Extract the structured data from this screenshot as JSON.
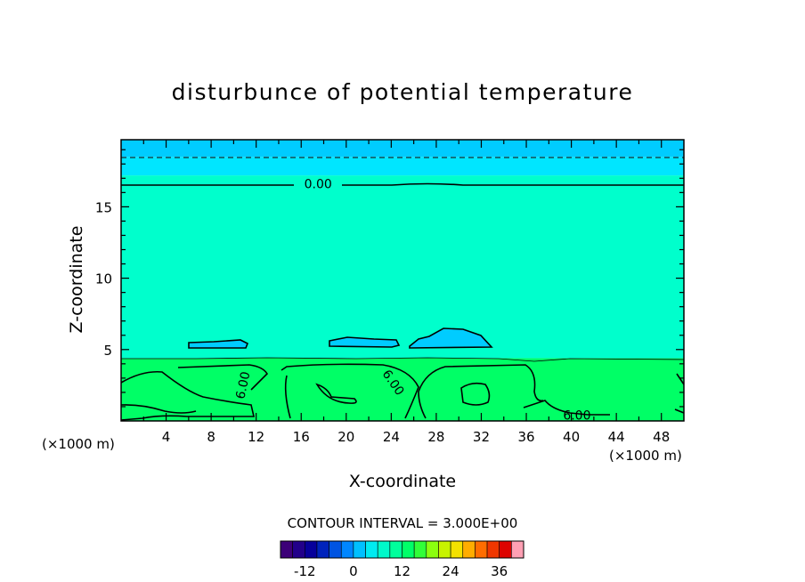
{
  "chart_data": {
    "type": "contour",
    "title": "disturbunce of potential temperature",
    "xlabel": "X-coordinate",
    "ylabel": "Z-coordinate",
    "x_unit_left": "(×1000 m)",
    "x_unit_right": "(×1000 m)",
    "xlim": [
      0,
      50
    ],
    "ylim": [
      0,
      19.7
    ],
    "x_ticks": [
      4,
      8,
      12,
      16,
      20,
      24,
      28,
      32,
      36,
      40,
      44,
      48
    ],
    "y_ticks": [
      5,
      10,
      15
    ],
    "grid": false,
    "contour_interval_label": "CONTOUR INTERVAL = 3.000E+00",
    "contour_labels": [
      {
        "text": "0.00",
        "x": 17.5,
        "z": 16.6
      },
      {
        "text": "6.00",
        "x": 10.8,
        "z": 2.5
      },
      {
        "text": "6.00",
        "x": 24.2,
        "z": 2.7
      },
      {
        "text": "6.00",
        "x": 40.5,
        "z": 0.4
      }
    ],
    "field_bands": [
      {
        "z_from": 0,
        "z_to": 4.4,
        "value_approx": 6,
        "color": "#00ff66"
      },
      {
        "z_from": 4.4,
        "z_to": 17.2,
        "value_approx": 1,
        "color": "#00ffcc"
      },
      {
        "z_from": 17.2,
        "z_to": 18.5,
        "value_approx": -2,
        "color": "#00e6ff"
      },
      {
        "z_from": 18.5,
        "z_to": 19.7,
        "value_approx": -3,
        "color": "#00ccff"
      }
    ],
    "negative_pockets_z_approx": 5.5,
    "colorbar": {
      "min": -18,
      "max": 42,
      "interval": 3,
      "tick_labels": [
        "-12",
        "0",
        "12",
        "24",
        "36"
      ],
      "tick_values": [
        -12,
        0,
        12,
        24,
        36
      ]
    }
  }
}
